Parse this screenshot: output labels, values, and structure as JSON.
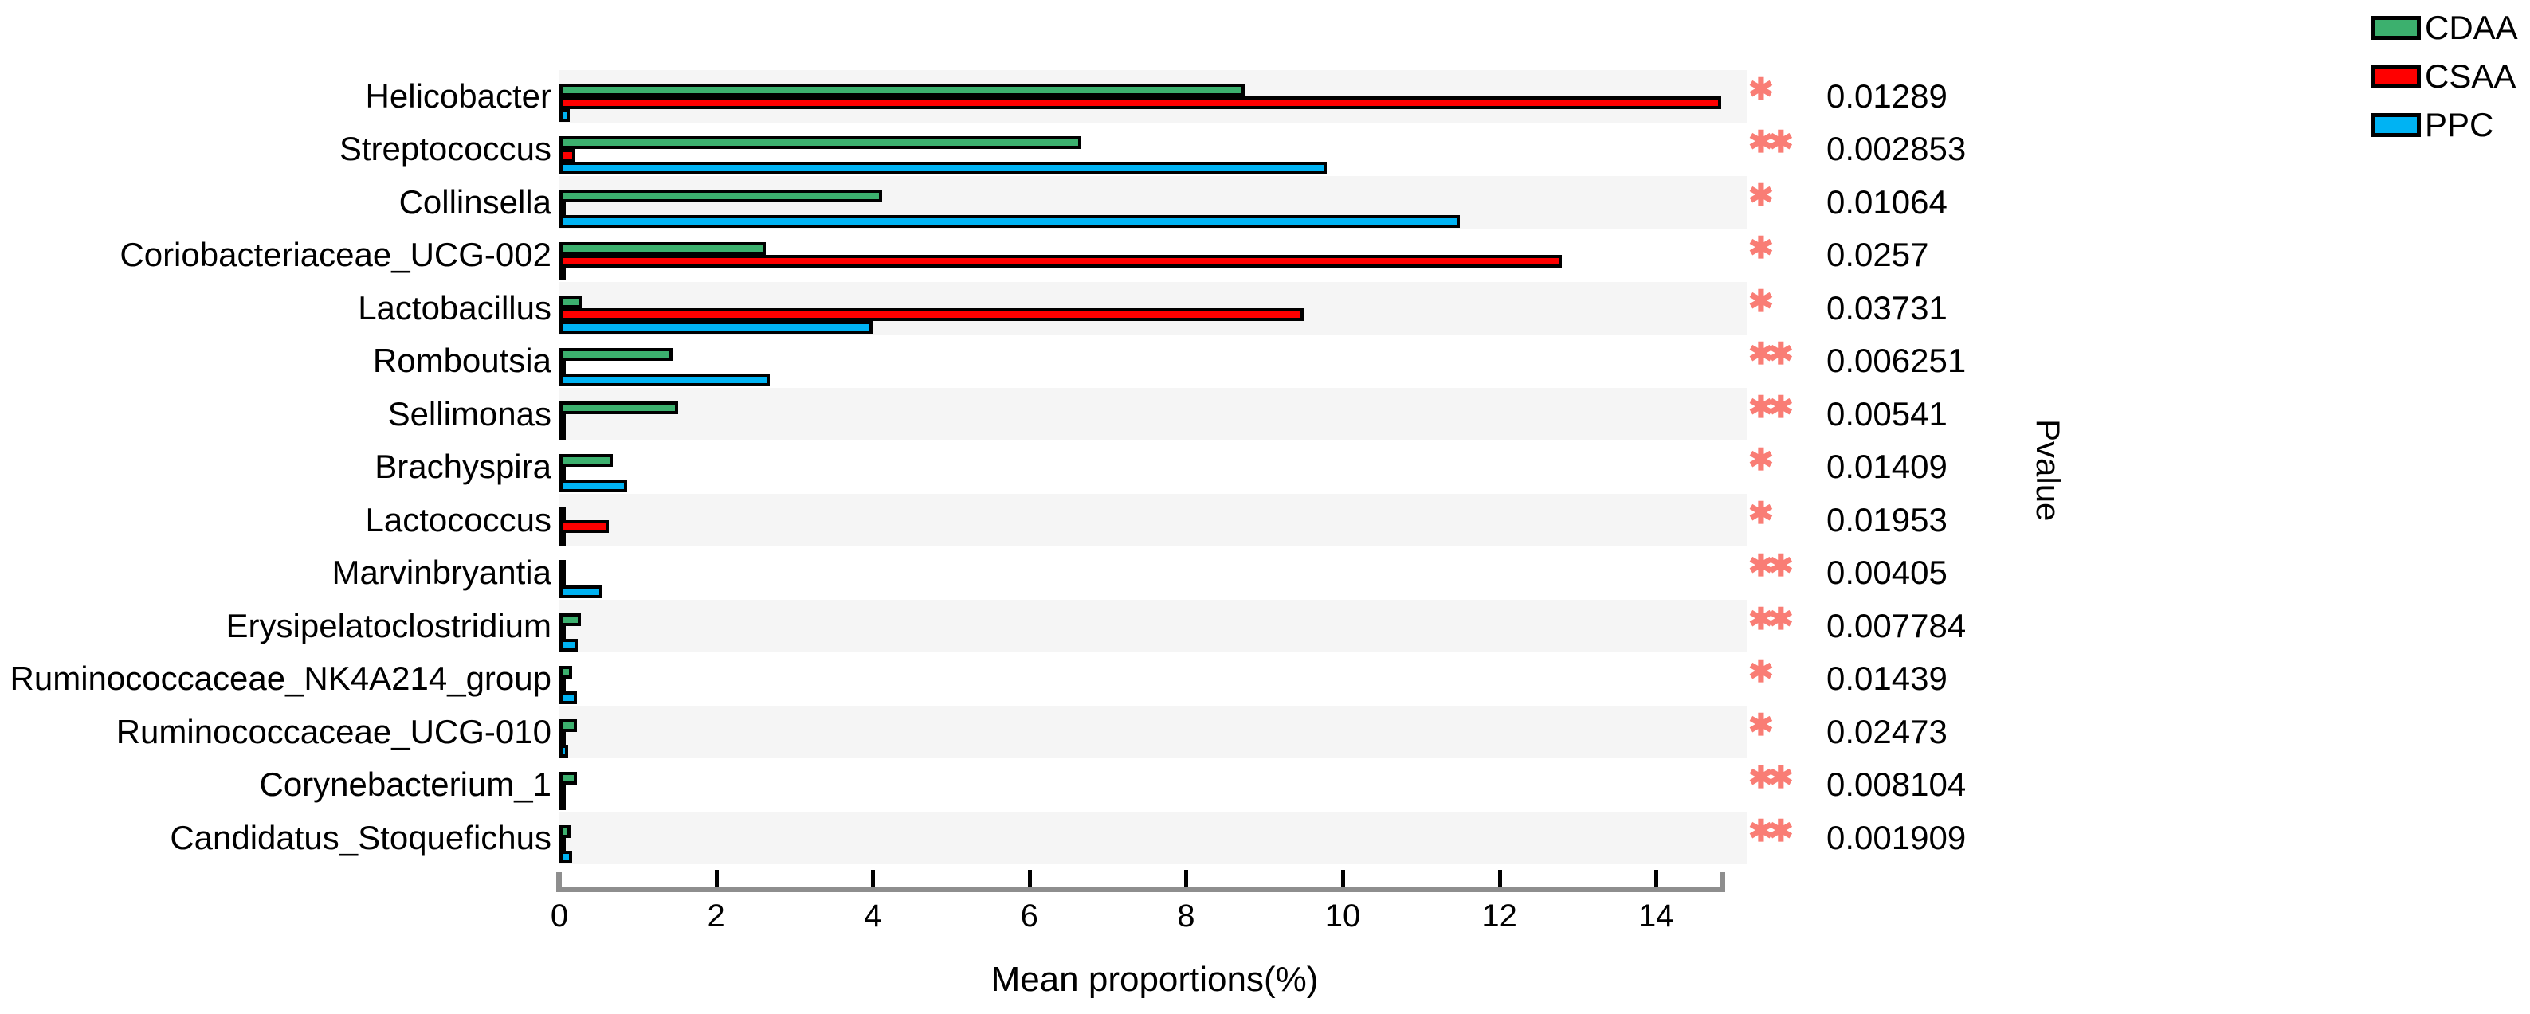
{
  "legend": {
    "items": [
      {
        "label": "CDAA",
        "color": "#3cb06e"
      },
      {
        "label": "CSAA",
        "color": "#ff0000"
      },
      {
        "label": "PPC",
        "color": "#00b3f3"
      }
    ]
  },
  "right_axis_label": "Pvalue",
  "styles": {
    "star_color": "#f97d75",
    "row_alt_color": "#f5f5f5",
    "axis_color": "#8e8e8e",
    "bar_border_color": "#000000",
    "background": "#ffffff"
  },
  "chart_data": {
    "type": "bar",
    "orientation": "horizontal",
    "title": "",
    "xlabel": "Mean proportions(%)",
    "ylabel": "",
    "xlim": [
      0,
      15.15
    ],
    "xticks": [
      0,
      2,
      4,
      6,
      8,
      10,
      12,
      14
    ],
    "grid": false,
    "legend_position": "top-right",
    "categories": [
      "Helicobacter",
      "Streptococcus",
      "Collinsella",
      "Coriobacteriaceae_UCG-002",
      "Lactobacillus",
      "Romboutsia",
      "Sellimonas",
      "Brachyspira",
      "Lactococcus",
      "Marvinbryantia",
      "Erysipelatoclostridium",
      "Ruminococcaceae_NK4A214_group",
      "Ruminococcaceae_UCG-010",
      "Corynebacterium_1",
      "Candidatus_Stoquefichus"
    ],
    "series": [
      {
        "name": "CDAA",
        "color": "#3cb06e",
        "values": [
          8.75,
          6.66,
          4.12,
          2.63,
          0.3,
          1.44,
          1.52,
          0.68,
          0.03,
          0.04,
          0.27,
          0.16,
          0.22,
          0.22,
          0.14
        ]
      },
      {
        "name": "CSAA",
        "color": "#ff0000",
        "values": [
          14.83,
          0.2,
          0.04,
          12.8,
          9.5,
          0.05,
          0.02,
          0.02,
          0.63,
          0.01,
          0.02,
          0.01,
          0.02,
          0.02,
          0.01
        ]
      },
      {
        "name": "PPC",
        "color": "#00b3f3",
        "values": [
          0.13,
          9.8,
          11.5,
          0.04,
          4.0,
          2.69,
          0.03,
          0.86,
          0.03,
          0.55,
          0.23,
          0.22,
          0.11,
          0.03,
          0.16
        ]
      }
    ],
    "pvalues": [
      "0.01289",
      "0.002853",
      "0.01064",
      "0.0257",
      "0.03731",
      "0.006251",
      "0.00541",
      "0.01409",
      "0.01953",
      "0.00405",
      "0.007784",
      "0.01439",
      "0.02473",
      "0.008104",
      "0.001909"
    ],
    "significance": [
      "*",
      "**",
      "*",
      "*",
      "*",
      "**",
      "**",
      "*",
      "*",
      "**",
      "**",
      "*",
      "*",
      "**",
      "**"
    ]
  }
}
